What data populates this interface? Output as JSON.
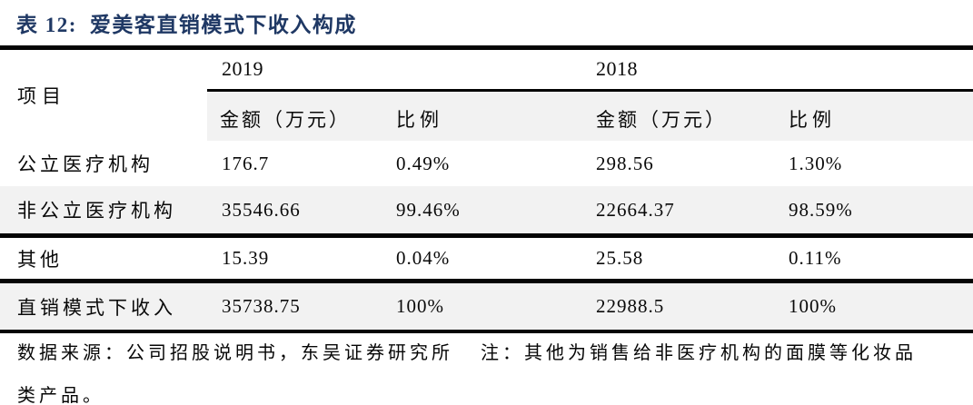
{
  "colors": {
    "title": "#1F3864",
    "rule": "#050505",
    "stripe": "#F2F2F2",
    "background": "#FFFFFF"
  },
  "title": {
    "prefix": "表 12:",
    "text": "爱美客直销模式下收入构成"
  },
  "table": {
    "item_header": "项目",
    "year_groups": [
      {
        "year": "2019",
        "amount_header": "金额（万元）",
        "ratio_header": "比例"
      },
      {
        "year": "2018",
        "amount_header": "金额（万元）",
        "ratio_header": "比例"
      }
    ],
    "rows": [
      {
        "label": "公立医疗机构",
        "amount_2019": "176.7",
        "ratio_2019": "0.49%",
        "amount_2018": "298.56",
        "ratio_2018": "1.30%"
      },
      {
        "label": "非公立医疗机构",
        "amount_2019": "35546.66",
        "ratio_2019": "99.46%",
        "amount_2018": "22664.37",
        "ratio_2018": "98.59%"
      },
      {
        "label": "其他",
        "amount_2019": "15.39",
        "ratio_2019": "0.04%",
        "amount_2018": "25.58",
        "ratio_2018": "0.11%"
      },
      {
        "label": "直销模式下收入",
        "amount_2019": "35738.75",
        "ratio_2019": "100%",
        "amount_2018": "22988.5",
        "ratio_2018": "100%"
      }
    ]
  },
  "footer": {
    "source": "数据来源：公司招股说明书，东吴证券研究所",
    "note": "注：其他为销售给非医疗机构的面膜等化妆品类产品。"
  }
}
